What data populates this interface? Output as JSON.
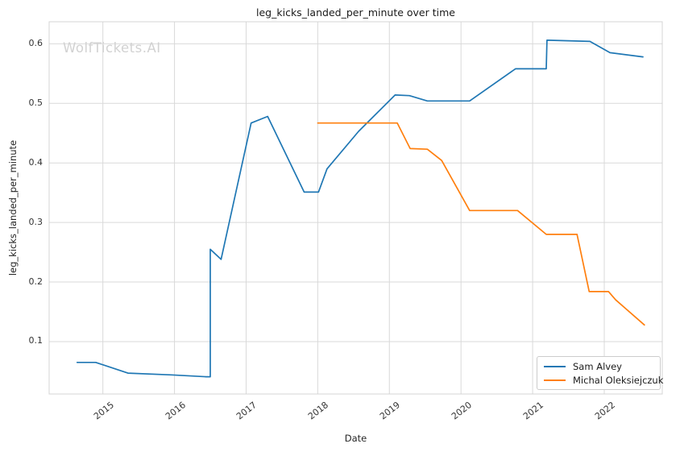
{
  "watermark": "WolfTickets.AI",
  "chart_data": {
    "type": "line",
    "title": "leg_kicks_landed_per_minute over time",
    "xlabel": "Date",
    "ylabel": "leg_kicks_landed_per_minute",
    "xlim": [
      2014.25,
      2022.81
    ],
    "ylim": [
      0.012,
      0.637
    ],
    "xticks": [
      2015,
      2016,
      2017,
      2018,
      2019,
      2020,
      2021,
      2022
    ],
    "yticks": [
      0.1,
      0.2,
      0.3,
      0.4,
      0.5,
      0.6
    ],
    "grid": true,
    "grid_color": "#d9d9d9",
    "spine_color": "#d4d4d4",
    "legend_position": "lower right",
    "series": [
      {
        "name": "Sam Alvey",
        "color": "#1f77b4",
        "points": [
          [
            2014.64,
            0.065
          ],
          [
            2014.9,
            0.065
          ],
          [
            2015.35,
            0.047
          ],
          [
            2015.96,
            0.044
          ],
          [
            2016.44,
            0.041
          ],
          [
            2016.5,
            0.041
          ],
          [
            2016.5,
            0.255
          ],
          [
            2016.65,
            0.238
          ],
          [
            2017.07,
            0.467
          ],
          [
            2017.3,
            0.478
          ],
          [
            2017.81,
            0.351
          ],
          [
            2018.01,
            0.351
          ],
          [
            2018.13,
            0.39
          ],
          [
            2018.57,
            0.453
          ],
          [
            2019.08,
            0.514
          ],
          [
            2019.28,
            0.513
          ],
          [
            2019.53,
            0.504
          ],
          [
            2020.12,
            0.504
          ],
          [
            2020.76,
            0.558
          ],
          [
            2021.19,
            0.558
          ],
          [
            2021.2,
            0.606
          ],
          [
            2021.8,
            0.604
          ],
          [
            2022.08,
            0.585
          ],
          [
            2022.54,
            0.578
          ]
        ]
      },
      {
        "name": "Michal Oleksiejczuk",
        "color": "#ff7f0e",
        "points": [
          [
            2018.0,
            0.467
          ],
          [
            2019.11,
            0.467
          ],
          [
            2019.29,
            0.424
          ],
          [
            2019.53,
            0.423
          ],
          [
            2019.73,
            0.404
          ],
          [
            2020.12,
            0.32
          ],
          [
            2020.79,
            0.32
          ],
          [
            2021.19,
            0.28
          ],
          [
            2021.62,
            0.28
          ],
          [
            2021.79,
            0.184
          ],
          [
            2022.06,
            0.184
          ],
          [
            2022.16,
            0.17
          ],
          [
            2022.56,
            0.128
          ]
        ]
      }
    ]
  }
}
